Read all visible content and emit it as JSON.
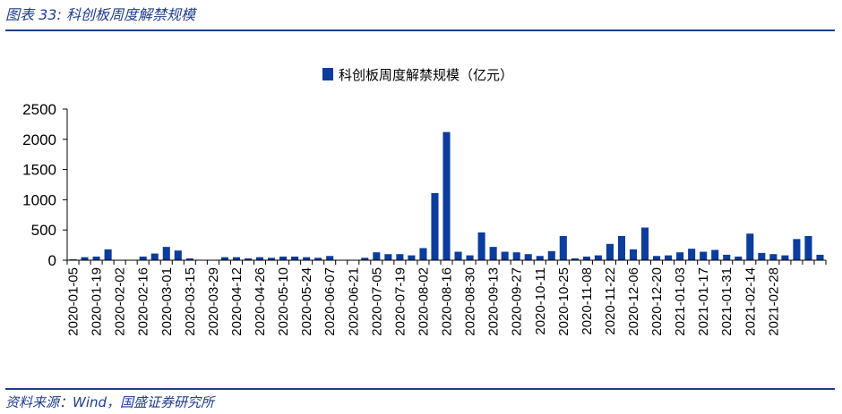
{
  "figure": {
    "label": "图表 33:",
    "title": "科创板周度解禁规模",
    "source": "资料来源：Wind，国盛证券研究所"
  },
  "colors": {
    "accent": "#1f3c8c",
    "bar": "#0c3c9c"
  },
  "chart_data": {
    "type": "bar",
    "legend": {
      "position": "top-center"
    },
    "ylim": [
      0,
      2500
    ],
    "yticks": [
      0,
      500,
      1000,
      1500,
      2000,
      2500
    ],
    "grid": false,
    "series": [
      {
        "name": "科创板周度解禁规模（亿元）",
        "values": [
          15,
          50,
          60,
          180,
          0,
          0,
          60,
          110,
          220,
          160,
          30,
          0,
          0,
          50,
          50,
          30,
          50,
          40,
          60,
          60,
          50,
          40,
          70,
          0,
          0,
          40,
          130,
          100,
          100,
          80,
          200,
          1110,
          2120,
          140,
          80,
          460,
          220,
          140,
          130,
          100,
          70,
          150,
          400,
          30,
          60,
          80,
          270,
          400,
          180,
          540,
          70,
          80,
          130,
          190,
          140,
          170,
          90,
          60,
          440,
          120,
          100,
          80,
          350,
          400,
          90
        ]
      }
    ],
    "x_tick_labels": [
      "2020-01-05",
      "2020-01-19",
      "2020-02-02",
      "2020-02-16",
      "2020-03-01",
      "2020-03-15",
      "2020-03-29",
      "2020-04-12",
      "2020-04-26",
      "2020-05-10",
      "2020-05-24",
      "2020-06-07",
      "2020-06-21",
      "2020-07-05",
      "2020-07-19",
      "2020-08-02",
      "2020-08-16",
      "2020-08-30",
      "2020-09-13",
      "2020-09-27",
      "2020-10-11",
      "2020-10-25",
      "2020-11-08",
      "2020-11-22",
      "2020-12-06",
      "2020-12-20",
      "2021-01-03",
      "2021-01-17",
      "2021-01-31",
      "2021-02-14",
      "2021-02-28"
    ]
  }
}
